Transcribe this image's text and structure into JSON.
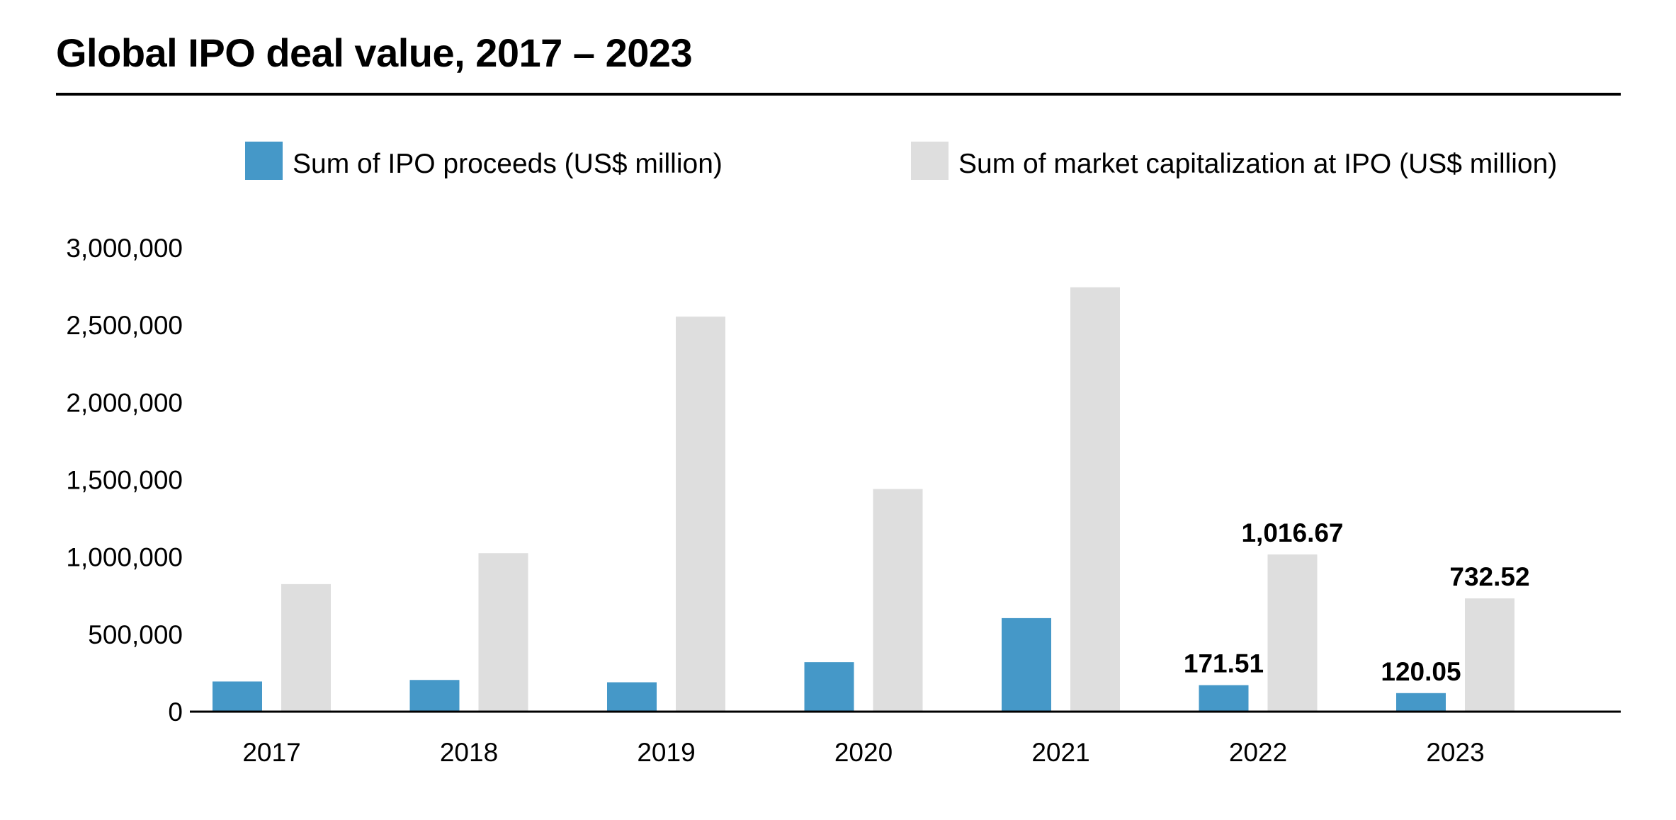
{
  "chart_data": {
    "type": "bar",
    "title": "Global IPO deal value, 2017 – 2023",
    "xlabel": "",
    "ylabel": "",
    "categories": [
      "2017",
      "2018",
      "2019",
      "2020",
      "2021",
      "2022",
      "2023"
    ],
    "ylim": [
      0,
      3000000
    ],
    "yticks": [
      0,
      500000,
      1000000,
      1500000,
      2000000,
      2500000,
      3000000
    ],
    "ytick_labels": [
      "0",
      "500,000",
      "1,000,000",
      "1,500,000",
      "2,000,000",
      "2,500,000",
      "3,000,000"
    ],
    "grid": false,
    "legend_position": "top",
    "series": [
      {
        "name": "Sum of IPO proceeds (US$ million)",
        "color": "#4598c8",
        "values": [
          195000,
          205000,
          190000,
          320000,
          605000,
          171510,
          120050
        ],
        "data_labels": [
          null,
          null,
          null,
          null,
          null,
          "171.51",
          "120.05"
        ]
      },
      {
        "name": "Sum of market capitalization at IPO (US$ million)",
        "color": "#dedede",
        "values": [
          825000,
          1025000,
          2555000,
          1440000,
          2745000,
          1016670,
          732520
        ],
        "data_labels": [
          null,
          null,
          null,
          null,
          null,
          "1,016.67",
          "732.52"
        ]
      }
    ]
  }
}
